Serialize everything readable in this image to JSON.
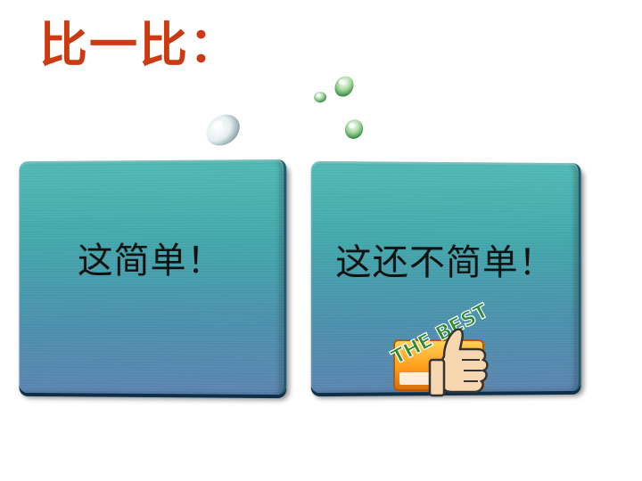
{
  "title": {
    "text": "比一比：",
    "color": "#cc3a12"
  },
  "panels": [
    {
      "text": "这简单！"
    },
    {
      "text": "这还不简单！"
    }
  ],
  "badge": {
    "text": "THE BEST",
    "icon": "thumbs-up-icon",
    "text_color": "#2f8a2f"
  }
}
